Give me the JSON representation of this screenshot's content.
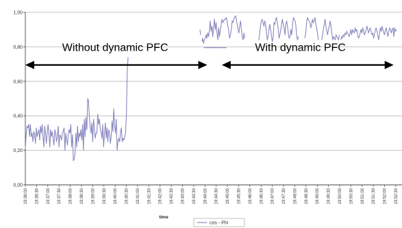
{
  "colors": {
    "series": "#8787bf",
    "grid": "#b3b3b3",
    "axis": "#444444",
    "arrow": "#000000"
  },
  "chart_data": {
    "type": "line",
    "xlabel": "time",
    "ylim": [
      0,
      1
    ],
    "y_ticks": [
      "0,00",
      "0,20",
      "0,40",
      "0,60",
      "0,80",
      "1,00"
    ],
    "x_ticks": [
      "19:36:00",
      "19:36:30",
      "19:37:00",
      "19:37:30",
      "19:38:00",
      "19:38:30",
      "19:39:00",
      "19:39:30",
      "19:40:00",
      "19:40:30",
      "19:41:00",
      "19:41:30",
      "19:42:00",
      "19:42:30",
      "19:43:00",
      "19:43:30",
      "19:44:00",
      "19:44:30",
      "19:45:00",
      "19:45:30",
      "19:46:00",
      "19:46:30",
      "19:47:00",
      "19:47:30",
      "19:48:00",
      "19:48:30",
      "19:49:00",
      "19:49:30",
      "19:50:00",
      "19:50:30",
      "19:51:00",
      "19:51:30",
      "19:52:00",
      "19:52:30"
    ],
    "grid": true,
    "legend_position": "bottom-center",
    "series": [
      {
        "name": "cos - Phi",
        "segments": [
          {
            "x_start": 0,
            "x_step": 0.075,
            "values": [
              0.21,
              0.29,
              0.34,
              0.33,
              0.35,
              0.28,
              0.35,
              0.28,
              0.3,
              0.25,
              0.31,
              0.29,
              0.24,
              0.33,
              0.28,
              0.3,
              0.32,
              0.26,
              0.34,
              0.3,
              0.35,
              0.28,
              0.22,
              0.34,
              0.3,
              0.24,
              0.3,
              0.35,
              0.3,
              0.22,
              0.32,
              0.28,
              0.31,
              0.27,
              0.23,
              0.32,
              0.3,
              0.25,
              0.28,
              0.34,
              0.22,
              0.29,
              0.28,
              0.26,
              0.3,
              0.31,
              0.33,
              0.2,
              0.3,
              0.26,
              0.23,
              0.29,
              0.32,
              0.3,
              0.35,
              0.22,
              0.29,
              0.14,
              0.15,
              0.18,
              0.3,
              0.22,
              0.34,
              0.25,
              0.3,
              0.28,
              0.32,
              0.26,
              0.35,
              0.2,
              0.38,
              0.28,
              0.39,
              0.32,
              0.5,
              0.49,
              0.4,
              0.34,
              0.3,
              0.36,
              0.25,
              0.38,
              0.33,
              0.27,
              0.3,
              0.3,
              0.41,
              0.35,
              0.38,
              0.33,
              0.3,
              0.27,
              0.35,
              0.22,
              0.3,
              0.36,
              0.27,
              0.33,
              0.25,
              0.32,
              0.3,
              0.24,
              0.28,
              0.37,
              0.31,
              0.44,
              0.35,
              0.3,
              0.38,
              0.2,
              0.25,
              0.27,
              0.25,
              0.3,
              0.33,
              0.25,
              0.27,
              0.26,
              0.28,
              0.3,
              0.4,
              0.66,
              0.74
            ]
          },
          {
            "x_start": 15.55,
            "x_step": 0.075,
            "values": [
              0.9,
              0.87
            ]
          },
          {
            "x_start": 15.72,
            "x_step": 0.075,
            "values": [
              0.83,
              0.85,
              0.82,
              0.84,
              0.85,
              0.87,
              0.85,
              0.88,
              0.86,
              0.9,
              0.95,
              0.89,
              0.92,
              0.86,
              0.91,
              0.96,
              0.9,
              0.94,
              0.88,
              0.84,
              0.91,
              0.86,
              0.9,
              0.93,
              0.96,
              0.94,
              0.95,
              0.96,
              0.96,
              0.97,
              0.95,
              0.92,
              0.89,
              0.85,
              0.87,
              0.9,
              0.95,
              0.94,
              0.96,
              0.97,
              0.98,
              0.96,
              0.93,
              0.9,
              0.88,
              0.92,
              0.95,
              0.9,
              0.86,
              0.84,
              0.88,
              0.85
            ]
          },
          {
            "x_start": 20.8,
            "x_step": 0.075,
            "values": [
              0.84,
              0.88,
              0.92,
              0.95,
              0.96,
              0.94,
              0.92,
              0.95,
              0.93,
              0.88,
              0.84,
              0.86,
              0.9,
              0.93,
              0.9,
              0.86,
              0.83,
              0.86,
              0.94,
              0.93,
              0.96,
              0.97,
              0.94,
              0.9,
              0.85,
              0.87,
              0.9,
              0.93,
              0.96,
              0.93,
              0.91,
              0.87,
              0.93,
              0.95,
              0.92,
              0.88,
              0.85,
              0.86,
              0.9,
              0.87,
              0.93,
              0.97,
              0.96,
              0.95,
              0.92,
              0.86,
              0.84,
              0.86
            ]
          },
          {
            "x_start": 24.9,
            "x_step": 0.075,
            "values": [
              0.85,
              0.88,
              0.94,
              0.97,
              0.96,
              0.95,
              0.94,
              0.91,
              0.93,
              0.96,
              0.94,
              0.95,
              0.97,
              0.93,
              0.91,
              0.88,
              0.84
            ]
          },
          {
            "x_start": 26.4,
            "x_step": 0.075,
            "values": [
              0.84,
              0.87,
              0.9,
              0.93,
              0.96,
              0.92,
              0.89,
              0.87,
              0.9,
              0.92,
              0.95,
              0.92,
              0.88,
              0.84,
              0.86,
              0.85,
              0.84,
              0.87,
              0.86,
              0.85,
              0.84,
              0.87
            ]
          },
          {
            "x_start": 28.1,
            "x_step": 0.075,
            "values": [
              0.84,
              0.86,
              0.85,
              0.87,
              0.86,
              0.88,
              0.87,
              0.89,
              0.88,
              0.87,
              0.86,
              0.88,
              0.9,
              0.87,
              0.9,
              0.89,
              0.88,
              0.91,
              0.89,
              0.9,
              0.87,
              0.85,
              0.86,
              0.88,
              0.9,
              0.88,
              0.91,
              0.89,
              0.87,
              0.88,
              0.9,
              0.92,
              0.9,
              0.88,
              0.9,
              0.91,
              0.89,
              0.87,
              0.88,
              0.85,
              0.87,
              0.9,
              0.91,
              0.89,
              0.86,
              0.84,
              0.88,
              0.91,
              0.89,
              0.92,
              0.9,
              0.88,
              0.87,
              0.9,
              0.91,
              0.88,
              0.86,
              0.89,
              0.91,
              0.9,
              0.88,
              0.9,
              0.91,
              0.86,
              0.91,
              0.89,
              0.9
            ]
          }
        ]
      }
    ],
    "annotations": [
      {
        "text": "Without dynamic PFC",
        "x": 8,
        "y": 0.775
      },
      {
        "text": "With dynamic PFC",
        "x": 24.5,
        "y": 0.775
      }
    ],
    "arrows": [
      {
        "x_from": 0,
        "x_to": 16.2,
        "y": 0.695
      },
      {
        "x_from": 17.5,
        "x_to": 32.8,
        "y": 0.695
      }
    ],
    "extra_lines": [
      {
        "x_from": 15.9,
        "x_to": 17.9,
        "y": 0.795
      }
    ]
  }
}
